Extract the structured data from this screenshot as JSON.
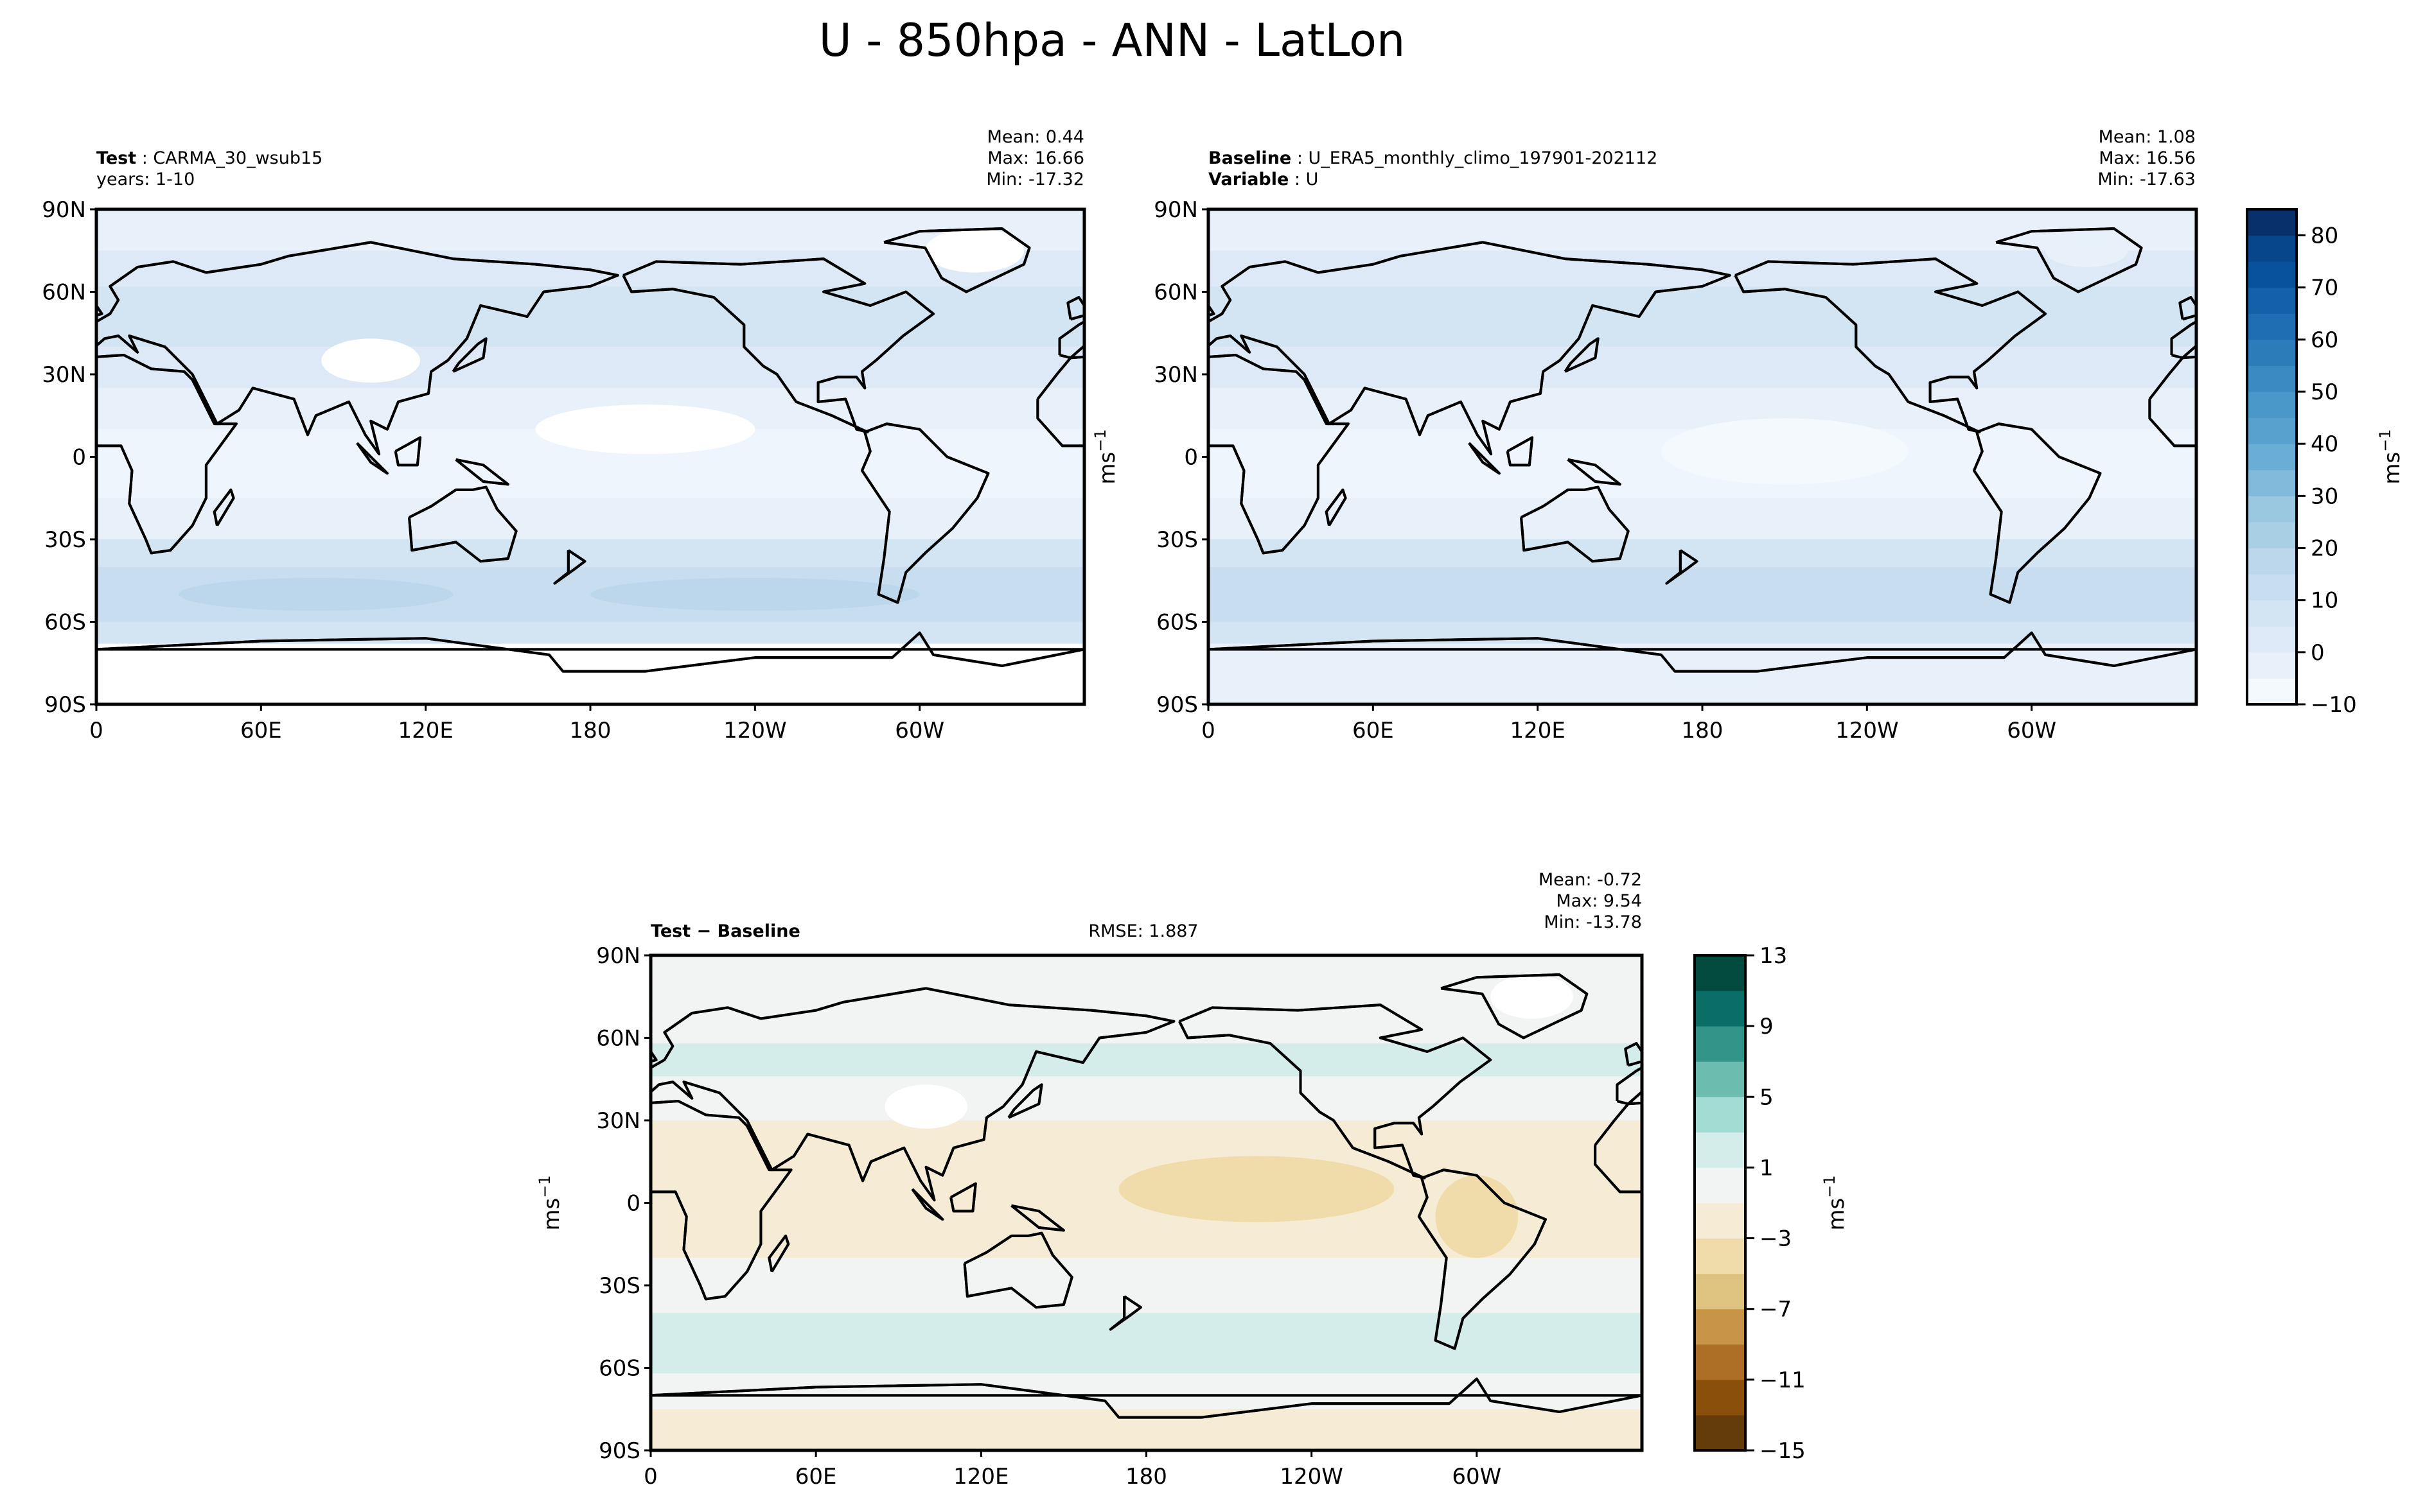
{
  "suptitle": "U - 850hpa - ANN - LatLon",
  "chart_data": [
    {
      "type": "heatmap",
      "subtype": "filled-contour map (PlateCarree, central longitude 180)",
      "left_title_bold": "Test",
      "left_title": "CARMA_30_wsub15",
      "left_subtitle": "years: 1-10",
      "stats": {
        "mean": "Mean:  0.44",
        "max": "Max: 16.66",
        "min": "Min: -17.32"
      },
      "xticks": [
        "0",
        "60E",
        "120E",
        "180",
        "120W",
        "60W"
      ],
      "yticks": [
        "90N",
        "60N",
        "30N",
        "0",
        "30S",
        "60S",
        "90S"
      ],
      "colormap": "Blues"
    },
    {
      "type": "heatmap",
      "subtype": "filled-contour map (PlateCarree, central longitude 180)",
      "left_title_bold": "Baseline",
      "left_title": "U_ERA5_monthly_climo_197901-202112",
      "left_subtitle_bold": "Variable",
      "left_subtitle": "U",
      "stats": {
        "mean": "Mean:  1.08",
        "max": "Max: 16.56",
        "min": "Min: -17.63"
      },
      "xticks": [
        "0",
        "60E",
        "120E",
        "180",
        "120W",
        "60W"
      ],
      "yticks": [
        "90N",
        "60N",
        "30N",
        "0",
        "30S",
        "60S",
        "90S"
      ],
      "ylabel": "ms",
      "ylabel_sup": "−1",
      "colorbar": {
        "levels": [
          -10,
          -5,
          0,
          5,
          10,
          15,
          20,
          25,
          30,
          35,
          40,
          45,
          50,
          55,
          60,
          65,
          70,
          75,
          80,
          85
        ],
        "ticks": [
          "−10",
          "0",
          "10",
          "20",
          "30",
          "40",
          "50",
          "60",
          "70",
          "80"
        ],
        "label": "ms",
        "label_sup": "−1",
        "colors": [
          "#f4f9fe",
          "#e8f1fa",
          "#dde9f6",
          "#d3e4f3",
          "#c9ddf0",
          "#bcd6ec",
          "#a9cfe5",
          "#9ac8e1",
          "#82badb",
          "#6aaed6",
          "#58a1cf",
          "#4a97c9",
          "#3b8bc2",
          "#2c7cba",
          "#1f6eb3",
          "#1561a9",
          "#08529c",
          "#08468b",
          "#08306b"
        ]
      }
    },
    {
      "type": "heatmap",
      "subtype": "filled-contour map difference",
      "left_title_bold": "Test − Baseline",
      "center_title": "RMSE: 1.887",
      "stats": {
        "mean": "Mean: -0.72",
        "max": "Max:  9.54",
        "min": "Min: -13.78"
      },
      "xticks": [
        "0",
        "60E",
        "120E",
        "180",
        "120W",
        "60W"
      ],
      "yticks": [
        "90N",
        "60N",
        "30N",
        "0",
        "30S",
        "60S",
        "90S"
      ],
      "ylabel": "ms",
      "ylabel_sup": "−1",
      "colorbar": {
        "levels": [
          -15,
          -13,
          -11,
          -9,
          -7,
          -5,
          -3,
          -1,
          1,
          3,
          5,
          7,
          9,
          11,
          13
        ],
        "ticks": [
          "−15",
          "−11",
          "−7",
          "−3",
          "1",
          "5",
          "9",
          "13"
        ],
        "label": "ms",
        "label_sup": "−1",
        "colors": [
          "#643c0a",
          "#8b4f0c",
          "#ad6f25",
          "#c89548",
          "#dec27f",
          "#efdcaa",
          "#f6ebd5",
          "#f2f4f3",
          "#d5edea",
          "#a2dcd2",
          "#6cbcb0",
          "#339489",
          "#0b6e66",
          "#024a3e"
        ],
        "colormap": "BrBG"
      }
    }
  ]
}
